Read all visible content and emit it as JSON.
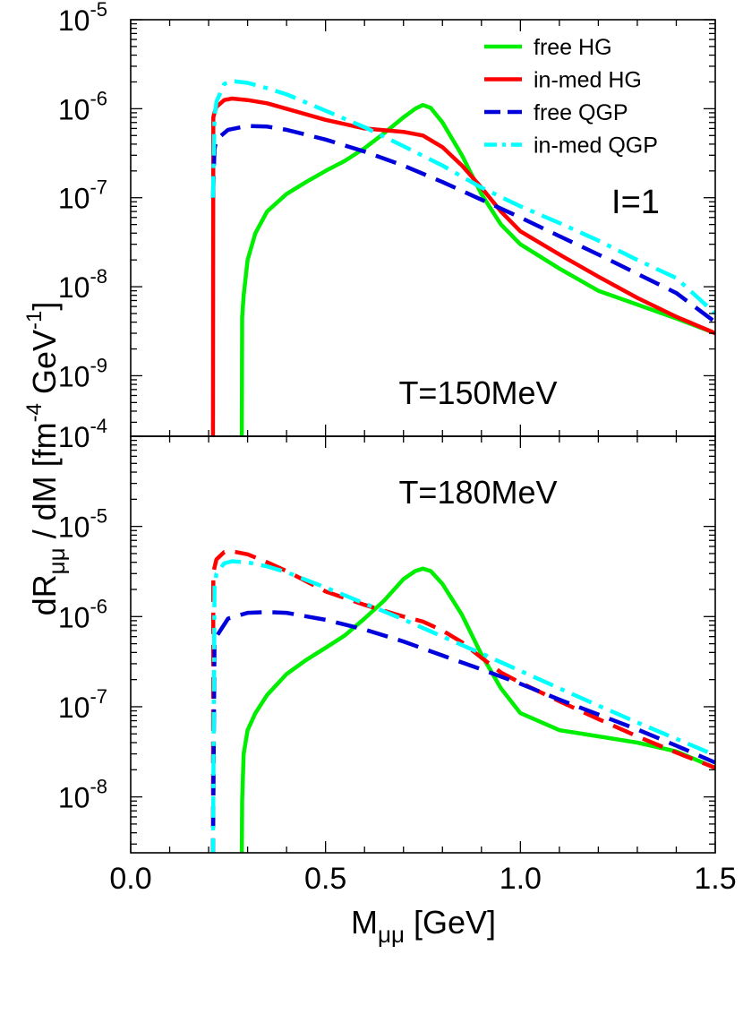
{
  "figure": {
    "xlabel_main": "M",
    "xlabel_sub": "μμ",
    "xlabel_unit": " [GeV]",
    "ylabel_main": "dR",
    "ylabel_sub": "μμ",
    "ylabel_mid": " / dM   [fm",
    "ylabel_sup1": "-4",
    "ylabel_mid2": " GeV",
    "ylabel_sup2": "-1",
    "ylabel_end": "]"
  },
  "colors": {
    "free_hg": "#00ee00",
    "inmed_hg": "#ff0000",
    "free_qgp": "#0000dd",
    "inmed_qgp": "#00ffff"
  },
  "chart_data": [
    {
      "type": "line",
      "panel": "top",
      "annotation": "T=150MeV",
      "annotation2": "I=1",
      "xlim": [
        0.0,
        1.5
      ],
      "ylim_log10": [
        -9.68,
        -5.0
      ],
      "y_scale": "log",
      "y_ticks": [
        {
          "base": "10",
          "exp": "-5"
        },
        {
          "base": "10",
          "exp": "-6"
        },
        {
          "base": "10",
          "exp": "-7"
        },
        {
          "base": "10",
          "exp": "-8"
        },
        {
          "base": "10",
          "exp": "-9"
        },
        {
          "base": "10",
          "exp": "-4"
        }
      ],
      "legend": {
        "placement": "top-right",
        "entries": [
          "free HG",
          "in-med HG",
          "free QGP",
          "in-med QGP"
        ]
      },
      "series": [
        {
          "name": "free HG",
          "color_key": "free_hg",
          "dash": "solid",
          "x": [
            0.285,
            0.286,
            0.29,
            0.3,
            0.32,
            0.35,
            0.4,
            0.45,
            0.5,
            0.55,
            0.6,
            0.65,
            0.7,
            0.73,
            0.75,
            0.77,
            0.8,
            0.85,
            0.9,
            0.95,
            1.0,
            1.1,
            1.2,
            1.3,
            1.4,
            1.5
          ],
          "y": [
            1e-10,
            4.5e-09,
            8e-09,
            2e-08,
            4e-08,
            7e-08,
            1.1e-07,
            1.5e-07,
            2e-07,
            2.6e-07,
            3.6e-07,
            5.3e-07,
            8e-07,
            1e-06,
            1.1e-06,
            1.02e-06,
            7e-07,
            3e-07,
            1.1e-07,
            5e-08,
            3e-08,
            1.6e-08,
            9e-09,
            6.3e-09,
            4.4e-09,
            3e-09
          ]
        },
        {
          "name": "in-med HG",
          "color_key": "inmed_hg",
          "dash": "solid",
          "x": [
            0.211,
            0.212,
            0.215,
            0.22,
            0.24,
            0.26,
            0.3,
            0.35,
            0.4,
            0.5,
            0.6,
            0.7,
            0.75,
            0.8,
            0.85,
            0.9,
            0.95,
            1.0,
            1.1,
            1.2,
            1.3,
            1.4,
            1.5
          ],
          "y": [
            1e-10,
            8e-07,
            9e-07,
            1.05e-06,
            1.25e-06,
            1.3e-06,
            1.25e-06,
            1.15e-06,
            1e-06,
            7.5e-07,
            6e-07,
            5.5e-07,
            5e-07,
            3.7e-07,
            2.3e-07,
            1.3e-07,
            7e-08,
            4.2e-08,
            2.3e-08,
            1.3e-08,
            7.5e-09,
            4.6e-09,
            3e-09
          ]
        },
        {
          "name": "free QGP",
          "color_key": "free_qgp",
          "dash": "dash",
          "x": [
            0.211,
            0.215,
            0.22,
            0.25,
            0.3,
            0.35,
            0.4,
            0.5,
            0.6,
            0.7,
            0.8,
            0.9,
            1.0,
            1.1,
            1.2,
            1.3,
            1.4,
            1.5
          ],
          "y": [
            1e-07,
            3.5e-07,
            4.5e-07,
            5.8e-07,
            6.4e-07,
            6.3e-07,
            5.8e-07,
            4.5e-07,
            3.3e-07,
            2.3e-07,
            1.5e-07,
            9.5e-08,
            6e-08,
            3.7e-08,
            2.3e-08,
            1.4e-08,
            8.5e-09,
            4e-09
          ]
        },
        {
          "name": "in-med QGP",
          "color_key": "inmed_qgp",
          "dash": "dashdot",
          "x": [
            0.211,
            0.215,
            0.22,
            0.24,
            0.26,
            0.3,
            0.35,
            0.4,
            0.5,
            0.6,
            0.7,
            0.8,
            0.9,
            1.0,
            1.1,
            1.2,
            1.3,
            1.4,
            1.5
          ],
          "y": [
            1e-07,
            8e-07,
            1.2e-06,
            1.9e-06,
            2.05e-06,
            1.95e-06,
            1.7e-06,
            1.45e-06,
            9.5e-07,
            6.2e-07,
            3.8e-07,
            2.3e-07,
            1.3e-07,
            8e-08,
            5.2e-08,
            3.3e-08,
            2e-08,
            1.25e-08,
            5e-09
          ]
        }
      ]
    },
    {
      "type": "line",
      "panel": "bottom",
      "annotation": "T=180MeV",
      "xlim": [
        0.0,
        1.5
      ],
      "ylim_log10": [
        -8.62,
        -4.0
      ],
      "y_scale": "log",
      "y_ticks": [
        {
          "base": "10",
          "exp": "-5"
        },
        {
          "base": "10",
          "exp": "-6"
        },
        {
          "base": "10",
          "exp": "-7"
        },
        {
          "base": "10",
          "exp": "-8"
        }
      ],
      "x_ticks": [
        "0.0",
        "0.5",
        "1.0",
        "1.5"
      ],
      "series": [
        {
          "name": "free HG",
          "color_key": "free_hg",
          "dash": "solid",
          "x": [
            0.285,
            0.286,
            0.29,
            0.3,
            0.32,
            0.35,
            0.4,
            0.45,
            0.5,
            0.55,
            0.6,
            0.65,
            0.7,
            0.73,
            0.75,
            0.77,
            0.8,
            0.85,
            0.9,
            0.95,
            1.0,
            1.1,
            1.2,
            1.3,
            1.4,
            1.5
          ],
          "y": [
            2e-09,
            9e-09,
            3e-08,
            5.5e-08,
            8.5e-08,
            1.35e-07,
            2.3e-07,
            3.3e-07,
            4.5e-07,
            6.2e-07,
            9.5e-07,
            1.5e-06,
            2.6e-06,
            3.2e-06,
            3.4e-06,
            3.2e-06,
            2.3e-06,
            1.05e-06,
            3.8e-07,
            1.6e-07,
            8.5e-08,
            5.5e-08,
            4.7e-08,
            4e-08,
            3.2e-08,
            2.1e-08
          ]
        },
        {
          "name": "in-med HG",
          "color_key": "inmed_hg",
          "dash": "dash",
          "x": [
            0.211,
            0.212,
            0.215,
            0.22,
            0.24,
            0.26,
            0.3,
            0.35,
            0.4,
            0.5,
            0.6,
            0.7,
            0.75,
            0.8,
            0.85,
            0.9,
            0.95,
            1.0,
            1.1,
            1.2,
            1.3,
            1.4,
            1.5
          ],
          "y": [
            2e-09,
            3e-06,
            3.5e-06,
            4.3e-06,
            5.2e-06,
            5.3e-06,
            4.9e-06,
            4e-06,
            3.2e-06,
            1.9e-06,
            1.35e-06,
            1e-06,
            8.8e-07,
            7e-07,
            5.2e-07,
            3.5e-07,
            2.4e-07,
            1.85e-07,
            1.15e-07,
            7.3e-08,
            4.7e-08,
            3.1e-08,
            2.1e-08
          ]
        },
        {
          "name": "free QGP",
          "color_key": "free_qgp",
          "dash": "dash",
          "x": [
            0.211,
            0.215,
            0.22,
            0.25,
            0.3,
            0.35,
            0.4,
            0.5,
            0.6,
            0.7,
            0.8,
            0.9,
            1.0,
            1.1,
            1.2,
            1.3,
            1.4,
            1.5
          ],
          "y": [
            2e-09,
            5e-07,
            6e-07,
            9.5e-07,
            1.1e-06,
            1.12e-06,
            1.1e-06,
            9.2e-07,
            7.2e-07,
            5.3e-07,
            3.7e-07,
            2.6e-07,
            1.8e-07,
            1.2e-07,
            8.2e-08,
            5.6e-08,
            3.7e-08,
            2.4e-08
          ]
        },
        {
          "name": "in-med QGP",
          "color_key": "inmed_qgp",
          "dash": "dashdot",
          "x": [
            0.211,
            0.215,
            0.22,
            0.24,
            0.26,
            0.3,
            0.35,
            0.4,
            0.5,
            0.6,
            0.7,
            0.8,
            0.9,
            1.0,
            1.1,
            1.2,
            1.3,
            1.4,
            1.5
          ],
          "y": [
            2e-09,
            2.2e-06,
            3e-06,
            3.9e-06,
            4.1e-06,
            4e-06,
            3.6e-06,
            3.1e-06,
            2.1e-06,
            1.4e-06,
            9.3e-07,
            6e-07,
            3.9e-07,
            2.5e-07,
            1.6e-07,
            1.03e-07,
            6.7e-08,
            4.4e-08,
            2.9e-08
          ]
        }
      ]
    }
  ]
}
